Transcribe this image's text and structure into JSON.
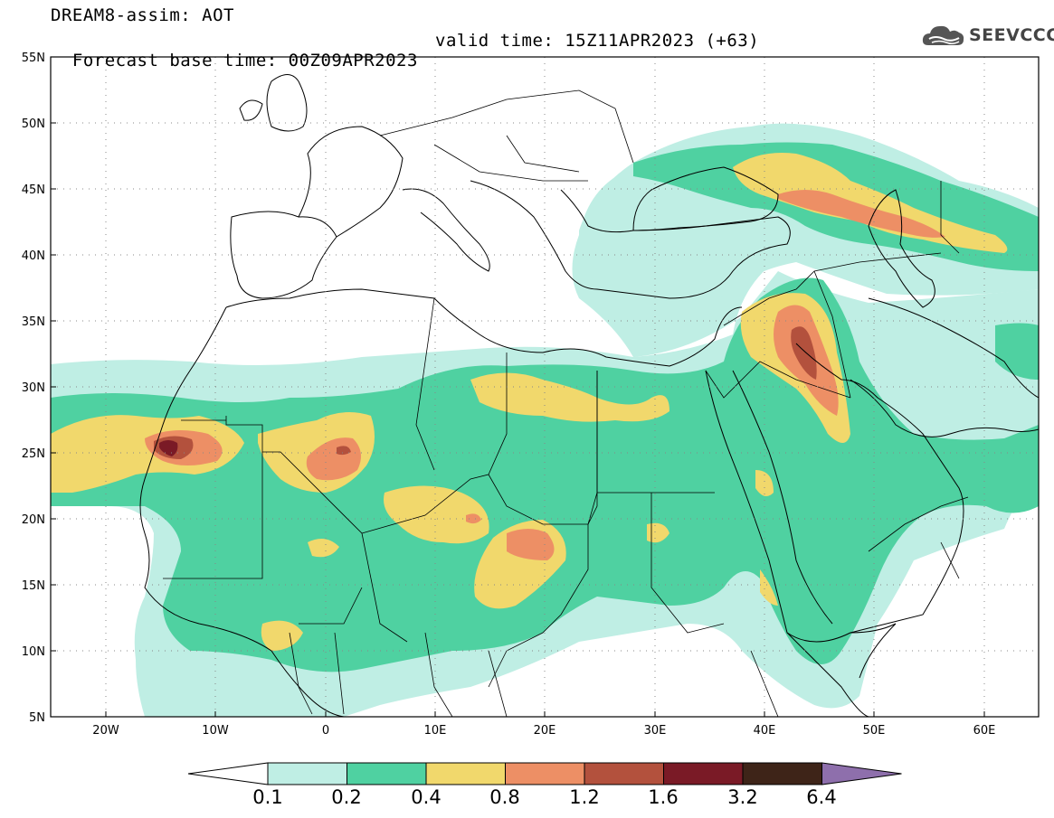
{
  "header": {
    "line1": "DREAM8-assim: AOT",
    "line2": "Forecast base time: 00Z09APR2023",
    "valid": "valid time: 15Z11APR2023 (+63)"
  },
  "logo": {
    "text": "SEEVCCC",
    "icon": "cloud-icon"
  },
  "axes": {
    "lat_labels": [
      "55N",
      "50N",
      "45N",
      "40N",
      "35N",
      "30N",
      "25N",
      "20N",
      "15N",
      "10N",
      "5N"
    ],
    "lon_labels": [
      "20W",
      "10W",
      "0",
      "10E",
      "20E",
      "30E",
      "40E",
      "50E",
      "60E"
    ],
    "lat_range": [
      5,
      55
    ],
    "lon_range": [
      -25,
      65
    ]
  },
  "colorbar": {
    "colors": [
      "#ffffff",
      "#bfeee4",
      "#4fd1a1",
      "#f1d86c",
      "#ed8f65",
      "#b3513d",
      "#7a1a26",
      "#3e2418",
      "#8e6fac"
    ],
    "labels": [
      "0.1",
      "0.2",
      "0.4",
      "0.8",
      "1.2",
      "1.6",
      "3.2",
      "6.4"
    ]
  }
}
